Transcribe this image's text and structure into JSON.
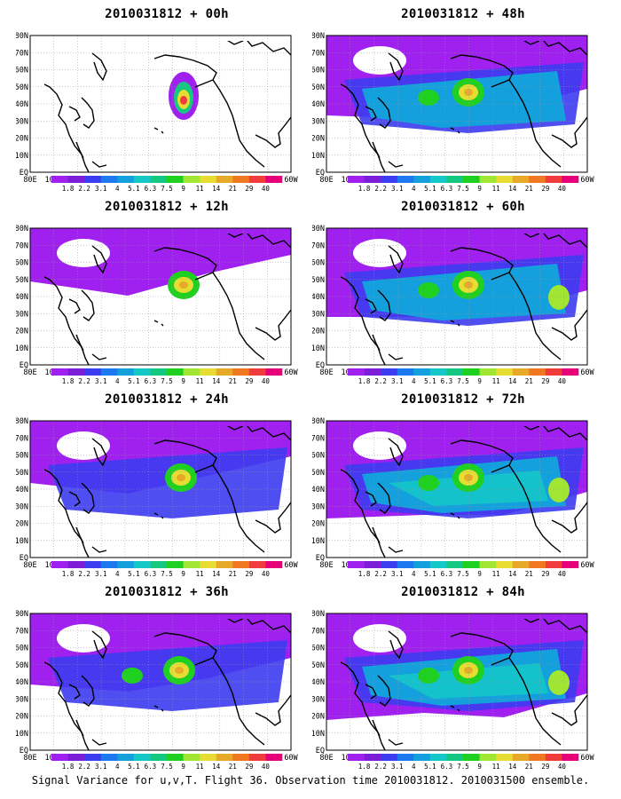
{
  "footer": "Signal Variance for u,v,T. Flight 36. Observation time 2010031812. 2010031500 ensemble.",
  "lon_labels": [
    "80E",
    "100E",
    "120E",
    "140E",
    "160E",
    "180",
    "160W",
    "140W",
    "120W",
    "100W",
    "80W",
    "60W"
  ],
  "lat_labels": [
    "80N",
    "70N",
    "60N",
    "50N",
    "40N",
    "30N",
    "20N",
    "10N",
    "EQ"
  ],
  "colorbar": {
    "labels": [
      "1.8",
      "2.2",
      "3.1",
      "4",
      "5.1",
      "6.3",
      "7.5",
      "9",
      "11",
      "14",
      "21",
      "29",
      "40"
    ],
    "colors": [
      "#a020f0",
      "#7c1ed8",
      "#3c3cf0",
      "#1e78f0",
      "#14a0dc",
      "#14c8c8",
      "#14c882",
      "#20d020",
      "#a0e632",
      "#e6dc32",
      "#e6aa28",
      "#f07820",
      "#f03c3c",
      "#e6007a"
    ]
  },
  "panels": [
    {
      "title": "2010031812 + 00h",
      "level": 0
    },
    {
      "title": "2010031812 + 48h",
      "level": 4
    },
    {
      "title": "2010031812 + 12h",
      "level": 1
    },
    {
      "title": "2010031812 + 60h",
      "level": 5
    },
    {
      "title": "2010031812 + 24h",
      "level": 2
    },
    {
      "title": "2010031812 + 72h",
      "level": 6
    },
    {
      "title": "2010031812 + 36h",
      "level": 3
    },
    {
      "title": "2010031812 + 84h",
      "level": 7
    }
  ]
}
